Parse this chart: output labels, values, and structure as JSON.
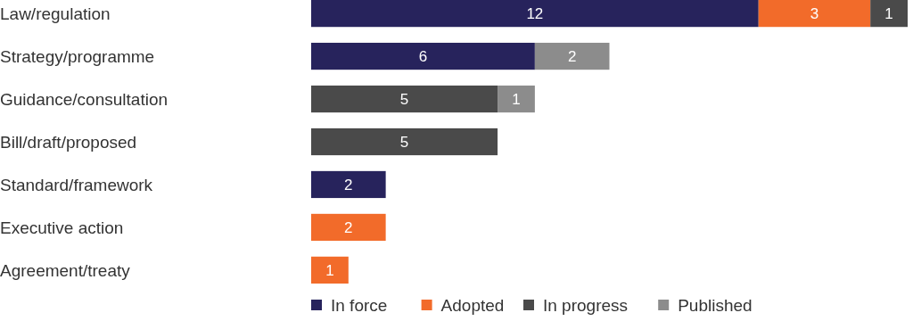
{
  "chart_data": {
    "type": "bar",
    "orientation": "horizontal",
    "stacked": true,
    "data_labels": true,
    "legend": "bottom",
    "tick_labels": "y",
    "categories": [
      "Law/regulation",
      "Strategy/programme",
      "Guidance/consultation",
      "Bill/draft/proposed",
      "Standard/framework",
      "Executive action",
      "Agreement/treaty"
    ],
    "series": [
      {
        "name": "In force",
        "color": "#27235c",
        "values": [
          12,
          6,
          null,
          null,
          2,
          null,
          null
        ]
      },
      {
        "name": "Adopted",
        "color": "#f26b2a",
        "values": [
          3,
          null,
          null,
          null,
          null,
          2,
          1
        ]
      },
      {
        "name": "In progress",
        "color": "#4a4a4a",
        "values": [
          1,
          null,
          5,
          5,
          null,
          null,
          null
        ]
      },
      {
        "name": "Published",
        "color": "#8c8c8c",
        "values": [
          null,
          2,
          1,
          null,
          null,
          null,
          null
        ]
      }
    ]
  }
}
